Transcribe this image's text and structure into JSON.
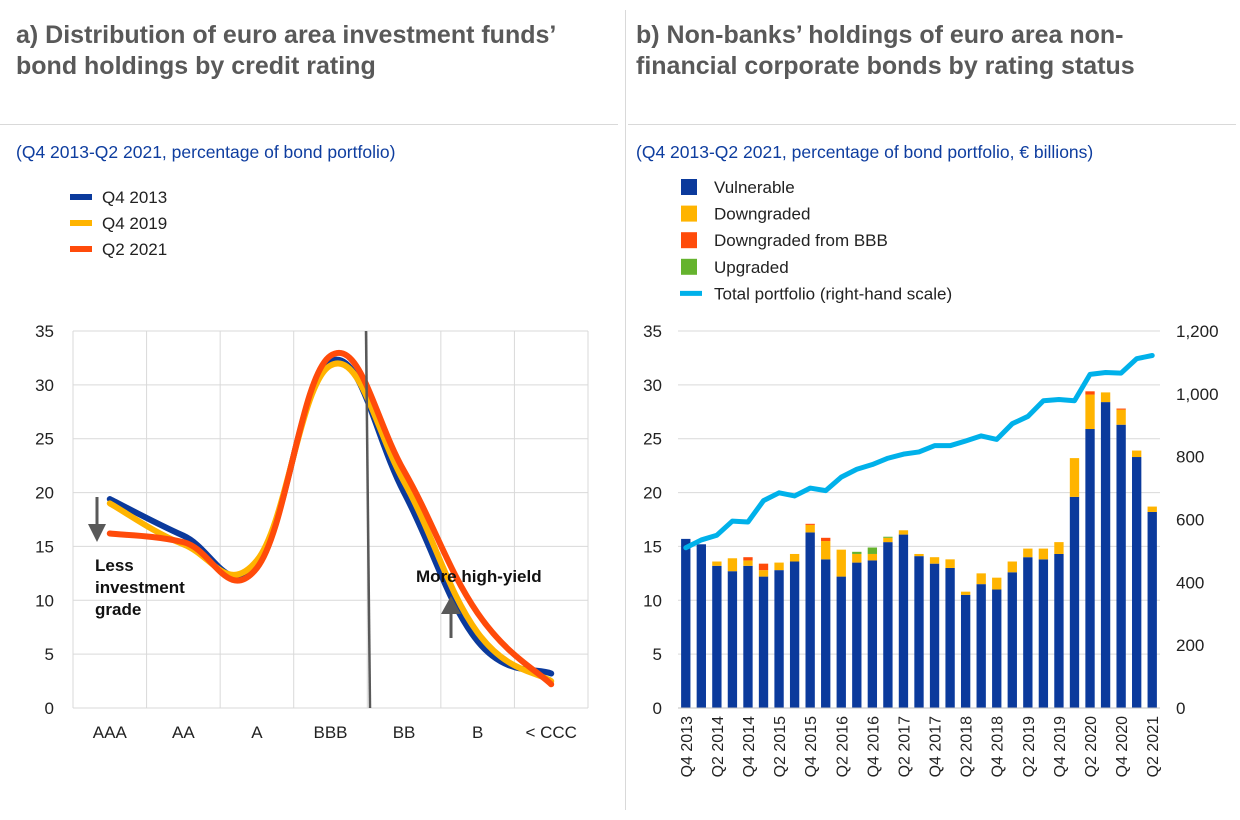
{
  "panel_a": {
    "title": "a) Distribution of euro area investment funds’ bond holdings by credit rating",
    "subtitle": "(Q4 2013-Q2 2021, percentage of bond portfolio)"
  },
  "panel_b": {
    "title": "b) Non-banks’ holdings of euro area non-financial corporate bonds by rating status",
    "subtitle": "(Q4 2013-Q2 2021, percentage of bond portfolio, € billions)"
  },
  "colors": {
    "q4_2013": "#0b3a9c",
    "q4_2019": "#ffb400",
    "q2_2021": "#ff4b0a",
    "vulnerable": "#0b3a9c",
    "downgraded": "#ffb400",
    "downgraded_bbb": "#ff4b0a",
    "upgraded": "#65b32e",
    "total": "#00b1ea",
    "grid": "#d9d9d9",
    "divider": "#595959"
  },
  "chart_data": [
    {
      "type": "line",
      "categories": [
        "AAA",
        "AA",
        "A",
        "BBB",
        "BB",
        "B",
        "< CCC"
      ],
      "ylim": [
        0,
        35
      ],
      "yticks": [
        "0",
        "5",
        "10",
        "15",
        "20",
        "25",
        "30",
        "35"
      ],
      "grid": true,
      "legend_position": "top-left",
      "series": [
        {
          "name": "Q4 2013",
          "values": [
            19.4,
            16.0,
            13.3,
            32.2,
            20.0,
            6.2,
            3.2
          ]
        },
        {
          "name": "Q4 2019",
          "values": [
            19.0,
            15.2,
            13.7,
            31.8,
            21.0,
            7.0,
            2.5
          ]
        },
        {
          "name": "Q2 2021",
          "values": [
            16.2,
            15.4,
            13.0,
            32.7,
            22.0,
            8.8,
            2.2
          ]
        }
      ],
      "annotations": {
        "left": [
          "Less",
          "investment",
          "grade"
        ],
        "right": "More high-yield"
      }
    },
    {
      "type": "bar",
      "stacked": true,
      "categories": [
        "Q4 2013",
        "Q1 2014",
        "Q2 2014",
        "Q3 2014",
        "Q4 2014",
        "Q1 2015",
        "Q2 2015",
        "Q3 2015",
        "Q4 2015",
        "Q1 2016",
        "Q2 2016",
        "Q3 2016",
        "Q4 2016",
        "Q1 2017",
        "Q2 2017",
        "Q3 2017",
        "Q4 2017",
        "Q1 2018",
        "Q2 2018",
        "Q3 2018",
        "Q4 2018",
        "Q1 2019",
        "Q2 2019",
        "Q3 2019",
        "Q4 2019",
        "Q1 2020",
        "Q2 2020",
        "Q3 2020",
        "Q4 2020",
        "Q1 2021",
        "Q2 2021"
      ],
      "xtick_labels": [
        "Q4 2013",
        "Q2 2014",
        "Q4 2014",
        "Q2 2015",
        "Q4 2015",
        "Q2 2016",
        "Q4 2016",
        "Q2 2017",
        "Q4 2017",
        "Q2 2018",
        "Q4 2018",
        "Q2 2019",
        "Q4 2019",
        "Q2 2020",
        "Q4 2020",
        "Q2 2021"
      ],
      "ylim": [
        0,
        35
      ],
      "yticks": [
        "0",
        "5",
        "10",
        "15",
        "20",
        "25",
        "30",
        "35"
      ],
      "y2lim": [
        0,
        1200
      ],
      "y2ticks": [
        "0",
        "200",
        "400",
        "600",
        "800",
        "1,000",
        "1,200"
      ],
      "legend_position": "top-left",
      "series": [
        {
          "name": "Vulnerable",
          "values": [
            15.7,
            15.2,
            13.2,
            12.7,
            13.2,
            12.2,
            12.8,
            13.6,
            16.3,
            13.8,
            12.2,
            13.5,
            13.7,
            15.4,
            16.1,
            14.1,
            13.4,
            13.0,
            10.5,
            11.5,
            11.0,
            12.6,
            14.0,
            13.8,
            14.3,
            19.6,
            25.9,
            28.4,
            26.3,
            23.3,
            18.2
          ]
        },
        {
          "name": "Downgraded",
          "values": [
            0.0,
            0.0,
            0.4,
            1.2,
            0.5,
            0.6,
            0.7,
            0.7,
            0.7,
            1.7,
            2.5,
            0.8,
            0.6,
            0.4,
            0.4,
            0.2,
            0.6,
            0.8,
            0.3,
            1.0,
            1.1,
            1.0,
            0.8,
            1.0,
            1.1,
            3.6,
            3.2,
            0.9,
            1.4,
            0.6,
            0.5
          ]
        },
        {
          "name": "Downgraded from BBB",
          "values": [
            0.0,
            0.0,
            0.0,
            0.0,
            0.3,
            0.6,
            0.0,
            0.0,
            0.1,
            0.3,
            0.0,
            0.0,
            0.0,
            0.0,
            0.0,
            0.0,
            0.0,
            0.0,
            0.0,
            0.0,
            0.0,
            0.0,
            0.0,
            0.0,
            0.0,
            0.0,
            0.3,
            0.0,
            0.1,
            0.0,
            0.0
          ]
        },
        {
          "name": "Upgraded",
          "values": [
            0.0,
            0.0,
            0.0,
            0.0,
            0.0,
            0.0,
            0.0,
            0.0,
            0.0,
            0.0,
            0.0,
            0.2,
            0.6,
            0.1,
            0.0,
            0.0,
            0.0,
            0.0,
            0.0,
            0.0,
            0.0,
            0.0,
            0.0,
            0.0,
            0.0,
            0.0,
            0.0,
            0.0,
            0.0,
            0.0,
            0.0
          ]
        },
        {
          "name": "Total portfolio (right-hand scale)",
          "axis": "right",
          "type": "line",
          "values": [
            510,
            535,
            550,
            595,
            592,
            660,
            685,
            675,
            700,
            692,
            735,
            760,
            775,
            795,
            808,
            815,
            835,
            835,
            850,
            866,
            855,
            905,
            928,
            978,
            982,
            978,
            1062,
            1068,
            1066,
            1112,
            1122
          ]
        }
      ]
    }
  ]
}
